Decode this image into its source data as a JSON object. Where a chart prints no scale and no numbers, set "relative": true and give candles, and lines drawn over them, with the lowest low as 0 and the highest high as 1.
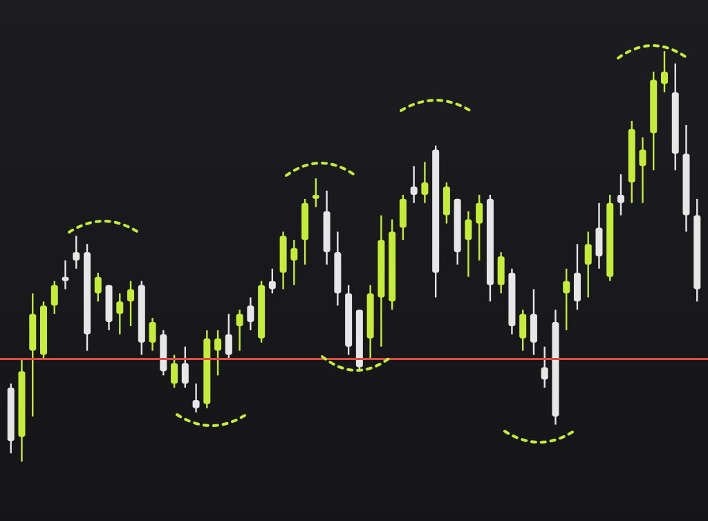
{
  "chart_data": {
    "type": "candlestick",
    "relative": true,
    "categories": [
      null,
      null,
      null,
      null,
      null,
      null,
      null,
      null,
      null,
      null,
      null,
      null,
      null,
      null,
      null,
      null,
      null,
      null,
      null,
      null,
      null,
      null,
      null,
      null,
      null,
      null,
      null,
      null,
      null,
      null,
      null,
      null,
      null,
      null,
      null,
      null,
      null,
      null,
      null,
      null,
      null,
      null,
      null,
      null,
      null,
      null,
      null,
      null,
      null,
      null,
      null,
      null,
      null,
      null,
      null,
      null,
      null,
      null,
      null,
      null,
      null,
      null,
      null,
      null
    ],
    "ohlc": [
      [
        0.18,
        0.19,
        0.02,
        0.05
      ],
      [
        0.06,
        0.25,
        0,
        0.22
      ],
      [
        0.27,
        0.41,
        0.11,
        0.36
      ],
      [
        0.26,
        0.39,
        0.25,
        0.38
      ],
      [
        0.38,
        0.44,
        0.36,
        0.43
      ],
      [
        0.45,
        0.49,
        0.42,
        0.44
      ],
      [
        0.51,
        0.55,
        0.47,
        0.49
      ],
      [
        0.51,
        0.53,
        0.27,
        0.31
      ],
      [
        0.41,
        0.46,
        0.39,
        0.45
      ],
      [
        0.43,
        0.43,
        0.32,
        0.34
      ],
      [
        0.36,
        0.41,
        0.31,
        0.39
      ],
      [
        0.39,
        0.44,
        0.33,
        0.42
      ],
      [
        0.43,
        0.44,
        0.26,
        0.29
      ],
      [
        0.29,
        0.35,
        0.27,
        0.34
      ],
      [
        0.31,
        0.32,
        0.21,
        0.22
      ],
      [
        0.19,
        0.26,
        0.18,
        0.24
      ],
      [
        0.24,
        0.28,
        0.18,
        0.19
      ],
      [
        0.15,
        0.19,
        0.12,
        0.13
      ],
      [
        0.14,
        0.32,
        0.13,
        0.3
      ],
      [
        0.27,
        0.32,
        0.21,
        0.3
      ],
      [
        0.31,
        0.36,
        0.25,
        0.26
      ],
      [
        0.33,
        0.37,
        0.27,
        0.36
      ],
      [
        0.38,
        0.4,
        0.32,
        0.34
      ],
      [
        0.3,
        0.44,
        0.29,
        0.43
      ],
      [
        0.44,
        0.47,
        0.41,
        0.42
      ],
      [
        0.46,
        0.56,
        0.42,
        0.55
      ],
      [
        0.49,
        0.54,
        0.43,
        0.52
      ],
      [
        0.54,
        0.64,
        0.48,
        0.63
      ],
      [
        0.64,
        0.69,
        0.62,
        0.65
      ],
      [
        0.61,
        0.66,
        0.48,
        0.51
      ],
      [
        0.51,
        0.56,
        0.38,
        0.41
      ],
      [
        0.41,
        0.43,
        0.26,
        0.28
      ],
      [
        0.37,
        0.37,
        0.22,
        0.23
      ],
      [
        0.3,
        0.43,
        0.25,
        0.41
      ],
      [
        0.4,
        0.6,
        0.28,
        0.54
      ],
      [
        0.39,
        0.59,
        0.37,
        0.56
      ],
      [
        0.57,
        0.65,
        0.54,
        0.64
      ],
      [
        0.67,
        0.72,
        0.63,
        0.65
      ],
      [
        0.65,
        0.73,
        0.63,
        0.68
      ],
      [
        0.76,
        0.77,
        0.4,
        0.46
      ],
      [
        0.6,
        0.68,
        0.58,
        0.67
      ],
      [
        0.64,
        0.64,
        0.48,
        0.51
      ],
      [
        0.54,
        0.61,
        0.45,
        0.59
      ],
      [
        0.58,
        0.65,
        0.49,
        0.63
      ],
      [
        0.64,
        0.65,
        0.39,
        0.43
      ],
      [
        0.43,
        0.51,
        0.41,
        0.5
      ],
      [
        0.46,
        0.47,
        0.31,
        0.33
      ],
      [
        0.3,
        0.37,
        0.27,
        0.36
      ],
      [
        0.36,
        0.42,
        0.26,
        0.29
      ],
      [
        0.23,
        0.28,
        0.18,
        0.2
      ],
      [
        0.34,
        0.37,
        0.09,
        0.11
      ],
      [
        0.41,
        0.47,
        0.32,
        0.44
      ],
      [
        0.46,
        0.53,
        0.37,
        0.39
      ],
      [
        0.48,
        0.56,
        0.4,
        0.53
      ],
      [
        0.57,
        0.63,
        0.47,
        0.5
      ],
      [
        0.45,
        0.65,
        0.44,
        0.63
      ],
      [
        0.65,
        0.7,
        0.6,
        0.63
      ],
      [
        0.68,
        0.83,
        0.63,
        0.81
      ],
      [
        0.72,
        0.79,
        0.63,
        0.76
      ],
      [
        0.8,
        0.95,
        0.71,
        0.93
      ],
      [
        0.92,
        1,
        0.9,
        0.95
      ],
      [
        0.9,
        0.97,
        0.71,
        0.75
      ],
      [
        0.75,
        0.82,
        0.56,
        0.6
      ],
      [
        0.6,
        0.64,
        0.39,
        0.42
      ]
    ],
    "colors": [
      "#e6e6e6",
      "#c5ec3a",
      "#c5ec3a",
      "#c5ec3a",
      "#c5ec3a",
      "#e6e6e6",
      "#e6e6e6",
      "#e6e6e6",
      "#c5ec3a",
      "#e6e6e6",
      "#c5ec3a",
      "#c5ec3a",
      "#e6e6e6",
      "#c5ec3a",
      "#e6e6e6",
      "#c5ec3a",
      "#e6e6e6",
      "#e6e6e6",
      "#c5ec3a",
      "#c5ec3a",
      "#e6e6e6",
      "#c5ec3a",
      "#e6e6e6",
      "#c5ec3a",
      "#e6e6e6",
      "#c5ec3a",
      "#c5ec3a",
      "#c5ec3a",
      "#c5ec3a",
      "#e6e6e6",
      "#e6e6e6",
      "#e6e6e6",
      "#e6e6e6",
      "#c5ec3a",
      "#c5ec3a",
      "#c5ec3a",
      "#c5ec3a",
      "#e6e6e6",
      "#c5ec3a",
      "#e6e6e6",
      "#c5ec3a",
      "#e6e6e6",
      "#c5ec3a",
      "#c5ec3a",
      "#e6e6e6",
      "#c5ec3a",
      "#e6e6e6",
      "#c5ec3a",
      "#e6e6e6",
      "#e6e6e6",
      "#e6e6e6",
      "#c5ec3a",
      "#e6e6e6",
      "#c5ec3a",
      "#e6e6e6",
      "#c5ec3a",
      "#e6e6e6",
      "#c5ec3a",
      "#c5ec3a",
      "#c5ec3a",
      "#c5ec3a",
      "#e6e6e6",
      "#e6e6e6",
      "#e6e6e6"
    ],
    "ref_lines": [
      {
        "axis": "y",
        "value": 0.25,
        "color": "#e04a3f"
      }
    ]
  }
}
